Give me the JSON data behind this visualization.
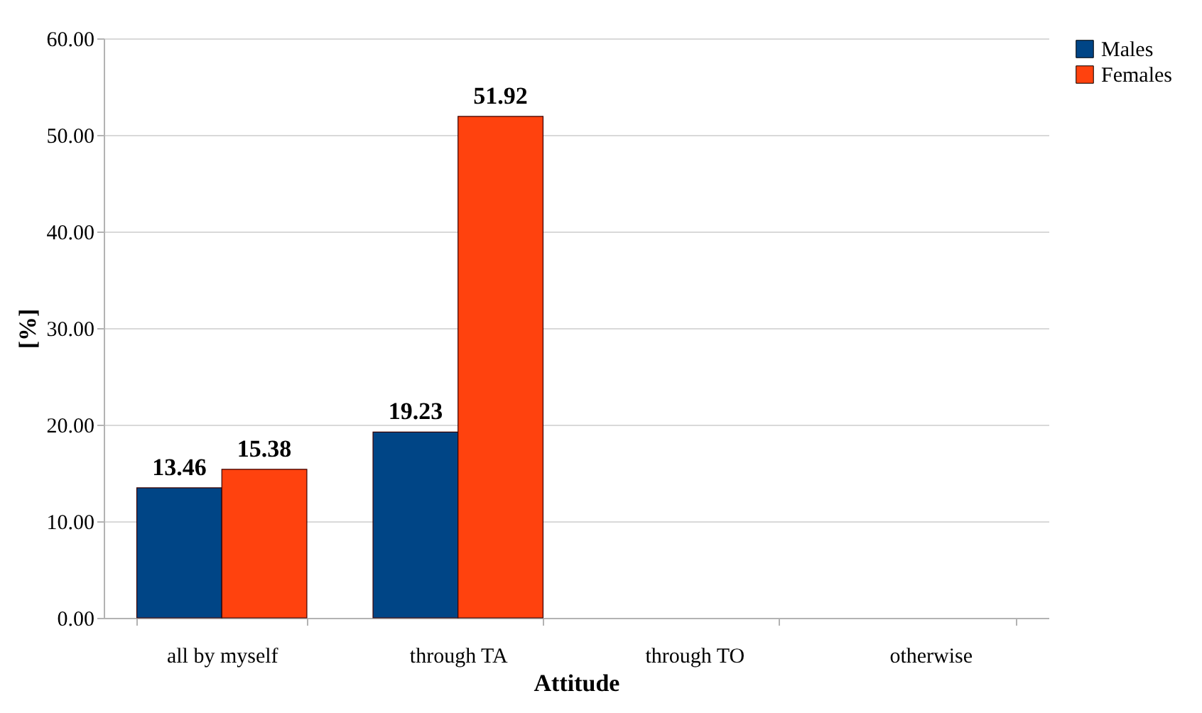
{
  "chart_data": {
    "type": "bar",
    "xlabel": "Attitude",
    "ylabel": "[%]",
    "categories": [
      "all by myself",
      "through TA",
      "through TO",
      "otherwise"
    ],
    "series": [
      {
        "name": "Males",
        "color": "#004586",
        "values": [
          13.46,
          19.23,
          0,
          0
        ],
        "value_labels": [
          "13.46",
          "19.23",
          null,
          null
        ]
      },
      {
        "name": "Females",
        "color": "#ff420e",
        "values": [
          15.38,
          51.92,
          0,
          0
        ],
        "value_labels": [
          "15.38",
          "51.92",
          null,
          null
        ]
      }
    ],
    "ylim": [
      0,
      60
    ],
    "yticks": [
      {
        "value": 0,
        "label": "0.00"
      },
      {
        "value": 10,
        "label": "10.00"
      },
      {
        "value": 20,
        "label": "20.00"
      },
      {
        "value": 30,
        "label": "30.00"
      },
      {
        "value": 40,
        "label": "40.00"
      },
      {
        "value": 50,
        "label": "50.00"
      },
      {
        "value": 60,
        "label": "60.00"
      }
    ],
    "grid": "y",
    "legend": "right"
  }
}
